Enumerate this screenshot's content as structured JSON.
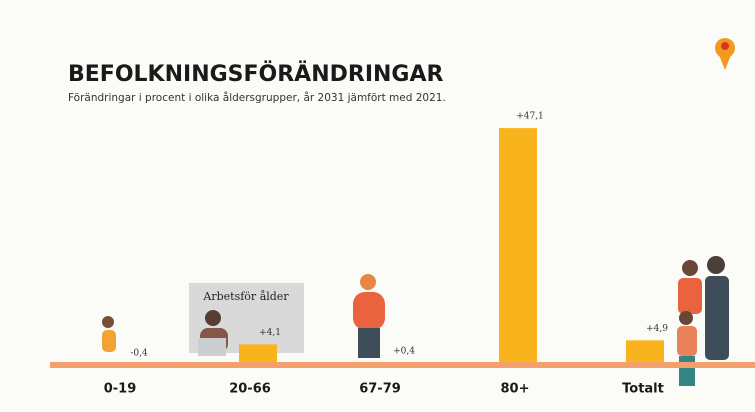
{
  "chart_data": {
    "type": "bar",
    "title": "BEFOLKNINGSFÖRÄNDRINGAR",
    "subtitle": "Förändringar i procent i olika åldersgrupper, år 2031 jämfört med 2021.",
    "annotation": "Arbetsför ålder",
    "categories": [
      "0-19",
      "20-66",
      "67-79",
      "80+",
      "Totalt"
    ],
    "values": [
      -0.4,
      4.1,
      0.4,
      47.1,
      4.9
    ],
    "value_labels": [
      "-0,4",
      "+4,1",
      "+0,4",
      "+47,1",
      "+4,9"
    ],
    "color": "#f9b31c"
  }
}
